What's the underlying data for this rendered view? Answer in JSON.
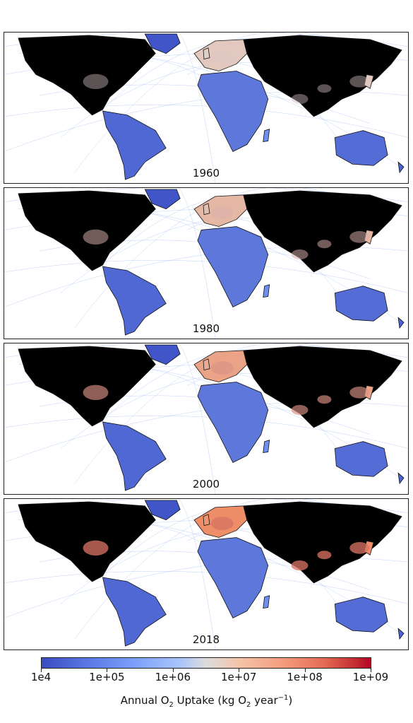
{
  "panels": [
    {
      "year": "1960",
      "heat": 0.15
    },
    {
      "year": "1980",
      "heat": 0.35
    },
    {
      "year": "2000",
      "heat": 0.6
    },
    {
      "year": "2018",
      "heat": 0.85
    }
  ],
  "colorbar": {
    "ticks": [
      "1e4",
      "1e+05",
      "1e+06",
      "1e+07",
      "1e+08",
      "1e+09"
    ],
    "label_prefix": "Annual O",
    "label_sub1": "2",
    "label_mid": " Uptake (kg O",
    "label_sub2": "2",
    "label_mid2": " year",
    "label_sup": "−1",
    "label_suffix": ")",
    "cmap": "coolwarm",
    "low_color": "#3b4cc0",
    "mid_color": "#dddcdc",
    "high_color": "#b40426"
  }
}
